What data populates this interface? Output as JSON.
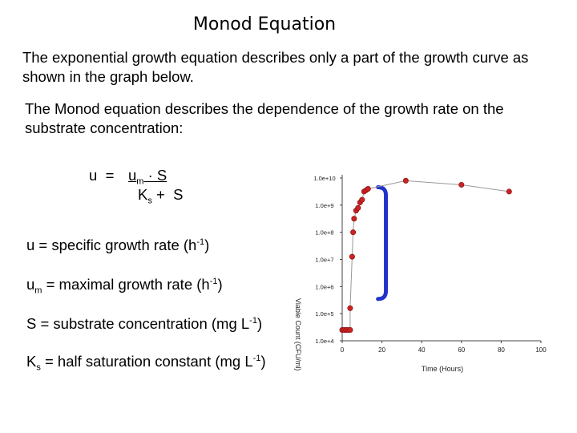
{
  "title": "Monod Equation",
  "paragraphs": {
    "p1": "The exponential growth equation describes only a part of the growth curve as shown in the graph below.",
    "p2": "The Monod equation describes the dependence of the growth rate on the substrate concentration:"
  },
  "equation": {
    "lhs": "u  =",
    "numerator_u": "u",
    "numerator_sub": "m",
    "numerator_rest": " · S",
    "denominator_k": "K",
    "denominator_sub": "s",
    "denominator_rest": " +  S"
  },
  "definitions": {
    "d1": {
      "pre": "u = specific growth rate (h",
      "sup": "-1",
      "post": ")"
    },
    "d2": {
      "pre": "u",
      "sub": "m",
      "mid": " = maximal growth rate (h",
      "sup": "-1",
      "post": ")"
    },
    "d3": {
      "pre": "S = substrate concentration (mg L",
      "sup": "-1",
      "post": ")"
    },
    "d4": {
      "pre": "K",
      "sub": "s",
      "mid": " = half saturation constant (mg L",
      "sup": "-1",
      "post": ")"
    }
  },
  "chart_data": {
    "type": "scatter",
    "log_y": true,
    "xlabel": "Time (Hours)",
    "ylabel": "Viable Count (CFU/ml)",
    "x_ticks": [
      "0",
      "20",
      "40",
      "60",
      "80",
      "100"
    ],
    "y_ticks": [
      "1.0e+4",
      "1.0e+5",
      "1.0e+6",
      "1.0e+7",
      "1.0e+8",
      "1.0e+9",
      "1.0e+10"
    ],
    "xlim": [
      0,
      100
    ],
    "ylim_log10": [
      4,
      10
    ],
    "series": [
      {
        "points": [
          [
            0,
            4.4
          ],
          [
            1,
            4.4
          ],
          [
            2,
            4.4
          ],
          [
            3,
            4.4
          ],
          [
            4,
            4.4
          ],
          [
            4,
            5.2
          ],
          [
            5,
            7.1
          ],
          [
            5.5,
            8.0
          ],
          [
            6,
            8.5
          ],
          [
            7,
            8.8
          ],
          [
            8,
            8.9
          ],
          [
            9,
            9.1
          ],
          [
            10,
            9.2
          ],
          [
            11,
            9.5
          ],
          [
            12,
            9.55
          ],
          [
            13,
            9.6
          ],
          [
            32,
            9.9
          ],
          [
            60,
            9.75
          ],
          [
            84,
            9.5
          ]
        ],
        "color": "#cc2222"
      }
    ],
    "bracket_color": "#2233cc"
  }
}
